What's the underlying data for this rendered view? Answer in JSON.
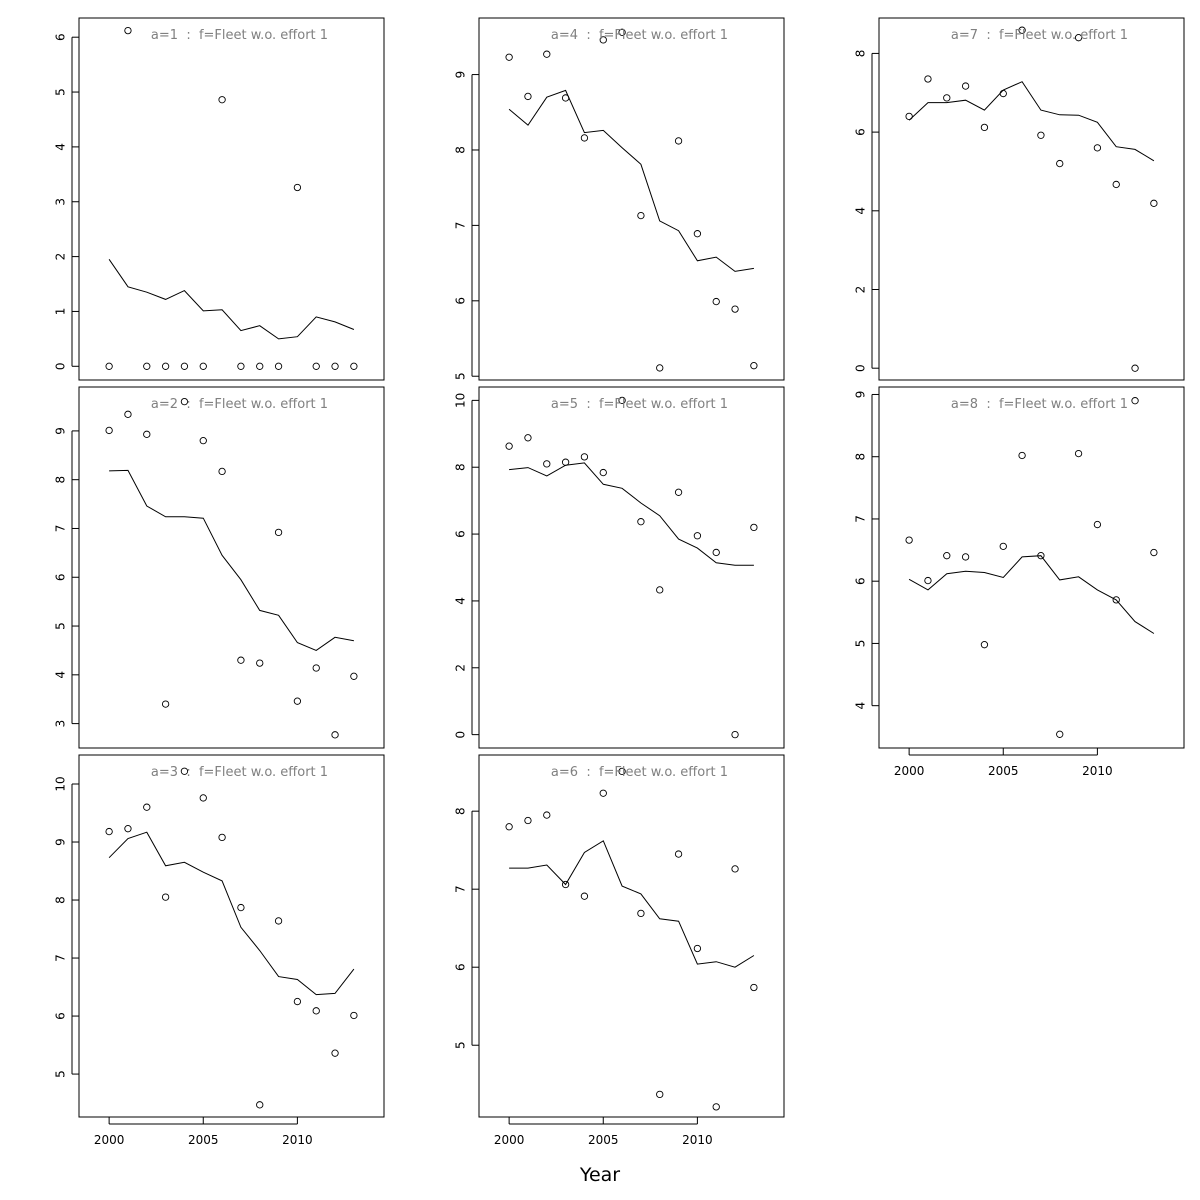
{
  "figure": {
    "xlabel": "Year",
    "x_ticks": [
      2000,
      2005,
      2010
    ],
    "xlim": [
      1998.4,
      2014.6
    ],
    "colors": {
      "title": "#808080",
      "ink": "#000000",
      "background": "#ffffff"
    }
  },
  "chart_data": [
    {
      "type": "scatter+line",
      "title": "a=1  :  f=Fleet w.o. effort 1",
      "ylim": [
        -0.25,
        6.35
      ],
      "y_ticks": [
        0,
        1,
        2,
        3,
        4,
        5,
        6
      ],
      "points": [
        [
          2000,
          0
        ],
        [
          2001,
          6.12
        ],
        [
          2002,
          0
        ],
        [
          2003,
          0
        ],
        [
          2004,
          0
        ],
        [
          2005,
          0
        ],
        [
          2006,
          4.86
        ],
        [
          2007,
          0
        ],
        [
          2008,
          0
        ],
        [
          2009,
          0
        ],
        [
          2010,
          3.26
        ],
        [
          2011,
          0
        ],
        [
          2012,
          0
        ],
        [
          2013,
          0
        ]
      ],
      "fitted": [
        [
          2000,
          1.95
        ],
        [
          2001,
          1.45
        ],
        [
          2002,
          1.35
        ],
        [
          2003,
          1.22
        ],
        [
          2004,
          1.38
        ],
        [
          2005,
          1.01
        ],
        [
          2006,
          1.03
        ],
        [
          2007,
          0.65
        ],
        [
          2008,
          0.74
        ],
        [
          2009,
          0.5
        ],
        [
          2010,
          0.54
        ],
        [
          2011,
          0.9
        ],
        [
          2012,
          0.81
        ],
        [
          2013,
          0.67
        ]
      ]
    },
    {
      "type": "scatter+line",
      "title": "a=2  :  f=Fleet w.o. effort 1",
      "ylim": [
        2.5,
        9.9
      ],
      "y_ticks": [
        3,
        4,
        5,
        6,
        7,
        8,
        9
      ],
      "points": [
        [
          2000,
          9.01
        ],
        [
          2001,
          9.34
        ],
        [
          2002,
          8.93
        ],
        [
          2003,
          3.4
        ],
        [
          2004,
          9.6
        ],
        [
          2005,
          8.8
        ],
        [
          2006,
          8.17
        ],
        [
          2007,
          4.3
        ],
        [
          2008,
          4.24
        ],
        [
          2009,
          6.92
        ],
        [
          2010,
          3.46
        ],
        [
          2011,
          4.14
        ],
        [
          2012,
          2.77
        ],
        [
          2013,
          3.97
        ]
      ],
      "fitted": [
        [
          2000,
          8.18
        ],
        [
          2001,
          8.19
        ],
        [
          2002,
          7.46
        ],
        [
          2003,
          7.24
        ],
        [
          2004,
          7.24
        ],
        [
          2005,
          7.21
        ],
        [
          2006,
          6.45
        ],
        [
          2007,
          5.95
        ],
        [
          2008,
          5.32
        ],
        [
          2009,
          5.22
        ],
        [
          2010,
          4.66
        ],
        [
          2011,
          4.5
        ],
        [
          2012,
          4.77
        ],
        [
          2013,
          4.7
        ]
      ]
    },
    {
      "type": "scatter+line",
      "title": "a=3  :  f=Fleet w.o. effort 1",
      "ylim": [
        4.26,
        10.5
      ],
      "y_ticks": [
        5,
        6,
        7,
        8,
        9,
        10
      ],
      "points": [
        [
          2000,
          9.18
        ],
        [
          2001,
          9.23
        ],
        [
          2002,
          9.6
        ],
        [
          2003,
          8.05
        ],
        [
          2004,
          10.22
        ],
        [
          2005,
          9.76
        ],
        [
          2006,
          9.08
        ],
        [
          2007,
          7.87
        ],
        [
          2008,
          4.47
        ],
        [
          2009,
          7.64
        ],
        [
          2010,
          6.25
        ],
        [
          2011,
          6.09
        ],
        [
          2012,
          5.36
        ],
        [
          2013,
          6.01
        ]
      ],
      "fitted": [
        [
          2000,
          8.73
        ],
        [
          2001,
          9.06
        ],
        [
          2002,
          9.17
        ],
        [
          2003,
          8.59
        ],
        [
          2004,
          8.65
        ],
        [
          2005,
          8.48
        ],
        [
          2006,
          8.33
        ],
        [
          2007,
          7.53
        ],
        [
          2008,
          7.13
        ],
        [
          2009,
          6.68
        ],
        [
          2010,
          6.63
        ],
        [
          2011,
          6.37
        ],
        [
          2012,
          6.39
        ],
        [
          2013,
          6.81
        ]
      ]
    },
    {
      "type": "scatter+line",
      "title": "a=4  :  f=Fleet w.o. effort 1",
      "ylim": [
        4.95,
        9.75
      ],
      "y_ticks": [
        5,
        6,
        7,
        8,
        9
      ],
      "points": [
        [
          2000,
          9.23
        ],
        [
          2001,
          8.71
        ],
        [
          2002,
          9.27
        ],
        [
          2003,
          8.69
        ],
        [
          2004,
          8.16
        ],
        [
          2005,
          9.46
        ],
        [
          2006,
          9.56
        ],
        [
          2007,
          7.13
        ],
        [
          2008,
          5.11
        ],
        [
          2009,
          8.12
        ],
        [
          2010,
          6.89
        ],
        [
          2011,
          5.99
        ],
        [
          2012,
          5.89
        ],
        [
          2013,
          5.14
        ]
      ],
      "fitted": [
        [
          2000,
          8.54
        ],
        [
          2001,
          8.33
        ],
        [
          2002,
          8.7
        ],
        [
          2003,
          8.79
        ],
        [
          2004,
          8.23
        ],
        [
          2005,
          8.26
        ],
        [
          2006,
          8.03
        ],
        [
          2007,
          7.81
        ],
        [
          2008,
          7.06
        ],
        [
          2009,
          6.93
        ],
        [
          2010,
          6.53
        ],
        [
          2011,
          6.58
        ],
        [
          2012,
          6.39
        ],
        [
          2013,
          6.43
        ]
      ]
    },
    {
      "type": "scatter+line",
      "title": "a=5  :  f=Fleet w.o. effort 1",
      "ylim": [
        -0.4,
        10.4
      ],
      "y_ticks": [
        0,
        2,
        4,
        6,
        8,
        10
      ],
      "points": [
        [
          2000,
          8.63
        ],
        [
          2001,
          8.88
        ],
        [
          2002,
          8.1
        ],
        [
          2003,
          8.15
        ],
        [
          2004,
          8.31
        ],
        [
          2005,
          7.84
        ],
        [
          2006,
          10.0
        ],
        [
          2007,
          6.37
        ],
        [
          2008,
          4.33
        ],
        [
          2009,
          7.25
        ],
        [
          2010,
          5.95
        ],
        [
          2011,
          5.45
        ],
        [
          2012,
          0
        ],
        [
          2013,
          6.2
        ]
      ],
      "fitted": [
        [
          2000,
          7.93
        ],
        [
          2001,
          7.99
        ],
        [
          2002,
          7.74
        ],
        [
          2003,
          8.06
        ],
        [
          2004,
          8.13
        ],
        [
          2005,
          7.49
        ],
        [
          2006,
          7.37
        ],
        [
          2007,
          6.93
        ],
        [
          2008,
          6.55
        ],
        [
          2009,
          5.85
        ],
        [
          2010,
          5.58
        ],
        [
          2011,
          5.14
        ],
        [
          2012,
          5.07
        ],
        [
          2013,
          5.07
        ]
      ]
    },
    {
      "type": "scatter+line",
      "title": "a=6  :  f=Fleet w.o. effort 1",
      "ylim": [
        4.08,
        8.72
      ],
      "y_ticks": [
        5,
        6,
        7,
        8
      ],
      "points": [
        [
          2000,
          7.8
        ],
        [
          2001,
          7.88
        ],
        [
          2002,
          7.95
        ],
        [
          2003,
          7.06
        ],
        [
          2004,
          6.91
        ],
        [
          2005,
          8.23
        ],
        [
          2006,
          8.51
        ],
        [
          2007,
          6.69
        ],
        [
          2008,
          4.37
        ],
        [
          2009,
          7.45
        ],
        [
          2010,
          6.24
        ],
        [
          2011,
          4.21
        ],
        [
          2012,
          7.26
        ],
        [
          2013,
          5.74
        ]
      ],
      "fitted": [
        [
          2000,
          7.27
        ],
        [
          2001,
          7.27
        ],
        [
          2002,
          7.31
        ],
        [
          2003,
          7.06
        ],
        [
          2004,
          7.47
        ],
        [
          2005,
          7.62
        ],
        [
          2006,
          7.04
        ],
        [
          2007,
          6.94
        ],
        [
          2008,
          6.62
        ],
        [
          2009,
          6.59
        ],
        [
          2010,
          6.04
        ],
        [
          2011,
          6.07
        ],
        [
          2012,
          6.0
        ],
        [
          2013,
          6.15
        ]
      ]
    },
    {
      "type": "scatter+line",
      "title": "a=7  :  f=Fleet w.o. effort 1",
      "ylim": [
        -0.3,
        8.9
      ],
      "y_ticks": [
        0,
        2,
        4,
        6,
        8
      ],
      "points": [
        [
          2000,
          6.4
        ],
        [
          2001,
          7.35
        ],
        [
          2002,
          6.87
        ],
        [
          2003,
          7.17
        ],
        [
          2004,
          6.12
        ],
        [
          2005,
          6.98
        ],
        [
          2006,
          8.59
        ],
        [
          2007,
          5.92
        ],
        [
          2008,
          5.2
        ],
        [
          2009,
          8.4
        ],
        [
          2010,
          5.6
        ],
        [
          2011,
          4.67
        ],
        [
          2012,
          0
        ],
        [
          2013,
          4.19
        ]
      ],
      "fitted": [
        [
          2000,
          6.3
        ],
        [
          2001,
          6.75
        ],
        [
          2002,
          6.75
        ],
        [
          2003,
          6.81
        ],
        [
          2004,
          6.56
        ],
        [
          2005,
          7.07
        ],
        [
          2006,
          7.28
        ],
        [
          2007,
          6.56
        ],
        [
          2008,
          6.44
        ],
        [
          2009,
          6.43
        ],
        [
          2010,
          6.25
        ],
        [
          2011,
          5.63
        ],
        [
          2012,
          5.56
        ],
        [
          2013,
          5.27
        ]
      ]
    },
    {
      "type": "scatter+line",
      "title": "a=8  :  f=Fleet w.o. effort 1",
      "ylim": [
        3.32,
        9.12
      ],
      "y_ticks": [
        4,
        5,
        6,
        7,
        8,
        9
      ],
      "points": [
        [
          2000,
          6.66
        ],
        [
          2001,
          6.01
        ],
        [
          2002,
          6.41
        ],
        [
          2003,
          6.39
        ],
        [
          2004,
          4.98
        ],
        [
          2005,
          6.56
        ],
        [
          2006,
          8.02
        ],
        [
          2007,
          6.41
        ],
        [
          2008,
          3.54
        ],
        [
          2009,
          8.05
        ],
        [
          2010,
          6.91
        ],
        [
          2011,
          5.7
        ],
        [
          2012,
          8.9
        ],
        [
          2013,
          6.46
        ]
      ],
      "fitted": [
        [
          2000,
          6.03
        ],
        [
          2001,
          5.86
        ],
        [
          2002,
          6.12
        ],
        [
          2003,
          6.16
        ],
        [
          2004,
          6.14
        ],
        [
          2005,
          6.06
        ],
        [
          2006,
          6.39
        ],
        [
          2007,
          6.41
        ],
        [
          2008,
          6.02
        ],
        [
          2009,
          6.07
        ],
        [
          2010,
          5.86
        ],
        [
          2011,
          5.7
        ],
        [
          2012,
          5.35
        ],
        [
          2013,
          5.16
        ]
      ]
    }
  ]
}
